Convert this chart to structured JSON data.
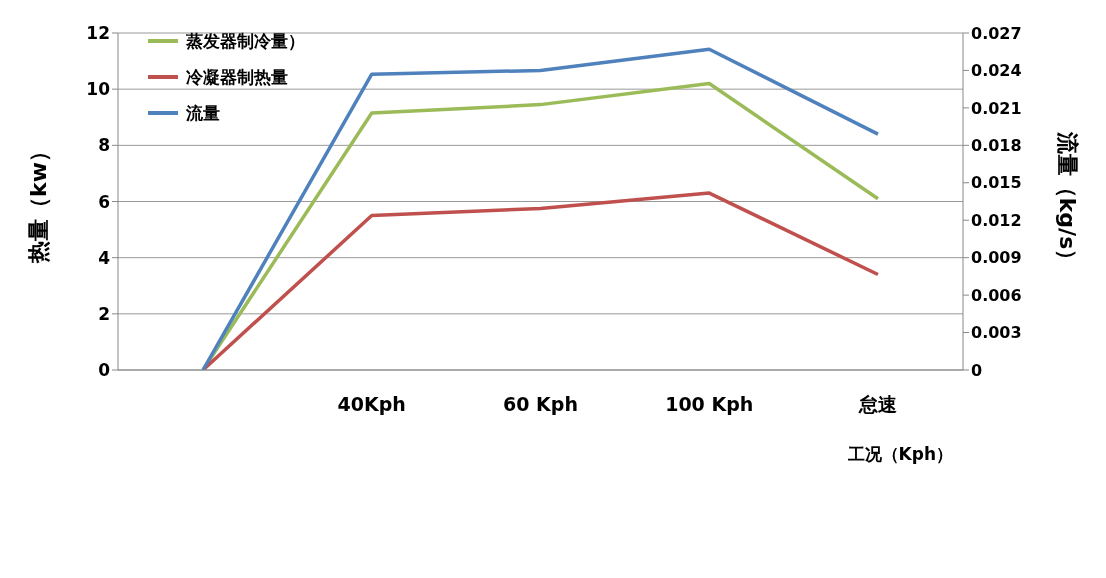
{
  "chart_data": {
    "type": "line",
    "xlabel": "工况（Kph）",
    "ylabel": "热量（kw）",
    "y2label": "流量（kg/s）",
    "categories": [
      null,
      "40Kph",
      "60 Kph",
      "100 Kph",
      "怠速"
    ],
    "series": [
      {
        "name": "蒸发器制冷量）",
        "color": "#9bbb59",
        "values": [
          0,
          9.15,
          9.45,
          10.2,
          6.1
        ]
      },
      {
        "name": "冷凝器制热量",
        "color": "#c0504d",
        "values": [
          0,
          5.5,
          5.75,
          6.3,
          3.4
        ]
      },
      {
        "name": "流量",
        "color": "#4f81bd",
        "axis": "y2",
        "values": [
          0,
          0.0237,
          0.024,
          0.0257,
          0.0189
        ]
      }
    ],
    "ylim": [
      0,
      12
    ],
    "yticks": [
      0,
      2,
      4,
      6,
      8,
      10,
      12
    ],
    "y2lim": [
      0,
      0.027
    ],
    "y2ticks": [
      0,
      0.003,
      0.006,
      0.009,
      0.012,
      0.015,
      0.018,
      0.021,
      0.024,
      0.027
    ],
    "grid": "y",
    "legend": "top left",
    "marker": "none",
    "line_style": "solid"
  }
}
